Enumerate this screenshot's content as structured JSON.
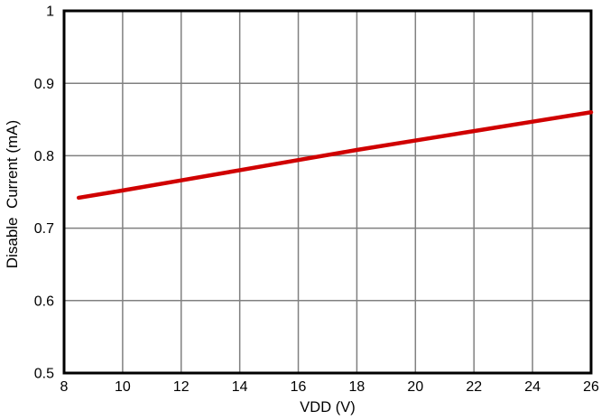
{
  "figure": {
    "background": "#ffffff"
  },
  "chart_data": {
    "type": "line",
    "title": "",
    "xlabel": "VDD (V)",
    "ylabel": "Disable  Current (mA)",
    "xlim": [
      8,
      26
    ],
    "ylim": [
      0.5,
      1
    ],
    "x_ticks": [
      8,
      10,
      12,
      14,
      16,
      18,
      20,
      22,
      24,
      26
    ],
    "x_tick_labels": [
      "8",
      "10",
      "12",
      "14",
      "16",
      "18",
      "20",
      "22",
      "24",
      "26"
    ],
    "y_ticks": [
      0.5,
      0.6,
      0.7,
      0.8,
      0.9,
      1
    ],
    "y_tick_labels": [
      "0.5",
      "0.6",
      "0.7",
      "0.8",
      "0.9",
      "1"
    ],
    "grid": true,
    "legend": "none",
    "series": [
      {
        "name": "Disable Current",
        "color": "#d00000",
        "x": [
          8.5,
          10,
          12,
          14,
          16,
          18,
          20,
          22,
          24,
          26
        ],
        "y": [
          0.742,
          0.752,
          0.766,
          0.78,
          0.794,
          0.808,
          0.821,
          0.834,
          0.847,
          0.86
        ]
      }
    ],
    "colors": {
      "line": "#d00000",
      "grid": "#808080",
      "frame": "#000000",
      "text": "#000000"
    }
  }
}
